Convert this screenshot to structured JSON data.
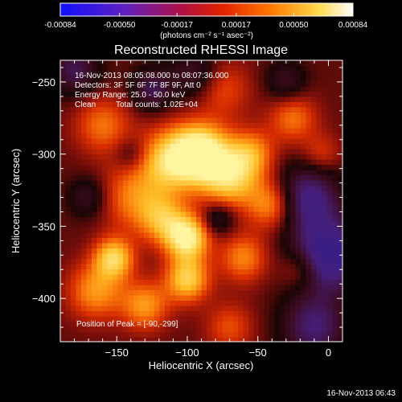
{
  "chart_data": {
    "type": "heatmap",
    "title": "Reconstructed RHESSI Image",
    "xlabel": "Heliocentric X (arcsec)",
    "ylabel": "Heliocentric Y (arcsec)",
    "xlim": [
      -190,
      10
    ],
    "ylim": [
      -430,
      -235
    ],
    "x_ticks": [
      "-150",
      "-100",
      "-50",
      "0"
    ],
    "x_tick_values": [
      -150,
      -100,
      -50,
      0
    ],
    "y_ticks": [
      "-250",
      "-300",
      "-350",
      "-400"
    ],
    "y_tick_values": [
      -250,
      -300,
      -350,
      -400
    ],
    "colorbar": {
      "ticks": [
        "-0.00084",
        "-0.00050",
        "-0.00017",
        "0.00017",
        "0.00050",
        "0.00084"
      ],
      "tick_values": [
        -0.00084,
        -0.0005,
        -0.00017,
        0.00017,
        0.0005,
        0.00084
      ],
      "range": [
        -0.00084,
        0.00084
      ],
      "units": "(photons cm⁻² s⁻¹ asec⁻²)",
      "colormap": "blue-purple-red-orange-yellow-white"
    },
    "annotations": {
      "time_range": "16-Nov-2013 08:05:08.000 to 08:07:36.000",
      "detectors": "Detectors: 3F 5F 6F 7F 8F 9F, Att 0",
      "energy": "Energy Range: 25.0 - 50.0 keV",
      "clean_label": "Clean",
      "total_counts": "Total counts: 1.02E+04",
      "peak": "Position of Peak = [-90,-299]"
    },
    "peak": {
      "x": -90,
      "y": -299
    },
    "blobs": [
      {
        "x": -90,
        "y": -299,
        "w": 1.0,
        "s": 14
      },
      {
        "x": -112,
        "y": -305,
        "w": 0.75,
        "s": 16
      },
      {
        "x": -70,
        "y": -318,
        "w": 0.7,
        "s": 14
      },
      {
        "x": -55,
        "y": -300,
        "w": 0.55,
        "s": 12
      },
      {
        "x": -40,
        "y": -335,
        "w": 0.6,
        "s": 12
      },
      {
        "x": -100,
        "y": -358,
        "w": 0.95,
        "s": 11
      },
      {
        "x": -118,
        "y": -345,
        "w": 0.55,
        "s": 12
      },
      {
        "x": -152,
        "y": -372,
        "w": 0.75,
        "s": 10
      },
      {
        "x": -100,
        "y": -387,
        "w": 0.75,
        "s": 11
      },
      {
        "x": -165,
        "y": -395,
        "w": 0.55,
        "s": 14
      },
      {
        "x": -60,
        "y": -372,
        "w": 0.5,
        "s": 12
      },
      {
        "x": -140,
        "y": -330,
        "w": 0.45,
        "s": 16
      },
      {
        "x": -160,
        "y": -280,
        "w": 0.45,
        "s": 14
      },
      {
        "x": -25,
        "y": -275,
        "w": 0.45,
        "s": 12
      },
      {
        "x": -75,
        "y": -255,
        "w": 0.35,
        "s": 14
      },
      {
        "x": -5,
        "y": -300,
        "w": 0.3,
        "s": 10
      },
      {
        "x": -20,
        "y": -380,
        "w": 0.35,
        "s": 10
      },
      {
        "x": -130,
        "y": -405,
        "w": 0.55,
        "s": 12
      },
      {
        "x": -70,
        "y": -420,
        "w": 0.35,
        "s": 12
      },
      {
        "x": -15,
        "y": -330,
        "w": -0.7,
        "s": 16
      },
      {
        "x": 0,
        "y": -370,
        "w": -0.9,
        "s": 18
      },
      {
        "x": -10,
        "y": -420,
        "w": -0.6,
        "s": 16
      },
      {
        "x": -95,
        "y": -245,
        "w": -0.4,
        "s": 12
      },
      {
        "x": -125,
        "y": -255,
        "w": -0.5,
        "s": 10
      },
      {
        "x": -180,
        "y": -242,
        "w": -0.5,
        "s": 12
      },
      {
        "x": -170,
        "y": -330,
        "w": -0.35,
        "s": 10
      },
      {
        "x": -78,
        "y": -345,
        "w": -0.4,
        "s": 8
      },
      {
        "x": -140,
        "y": -300,
        "w": -0.25,
        "s": 8
      },
      {
        "x": -30,
        "y": -250,
        "w": -0.35,
        "s": 10
      }
    ]
  },
  "footer": {
    "timestamp": "16-Nov-2013 06:43"
  }
}
